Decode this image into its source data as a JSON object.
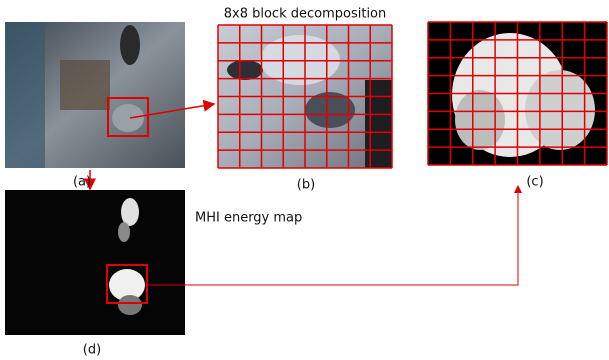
{
  "header": {
    "title": "8x8 block decomposition"
  },
  "annotation": "MHI energy map",
  "panels": [
    {
      "label": "(a)"
    },
    {
      "label": "(b)"
    },
    {
      "label": "(c)"
    },
    {
      "label": "(d)"
    }
  ]
}
